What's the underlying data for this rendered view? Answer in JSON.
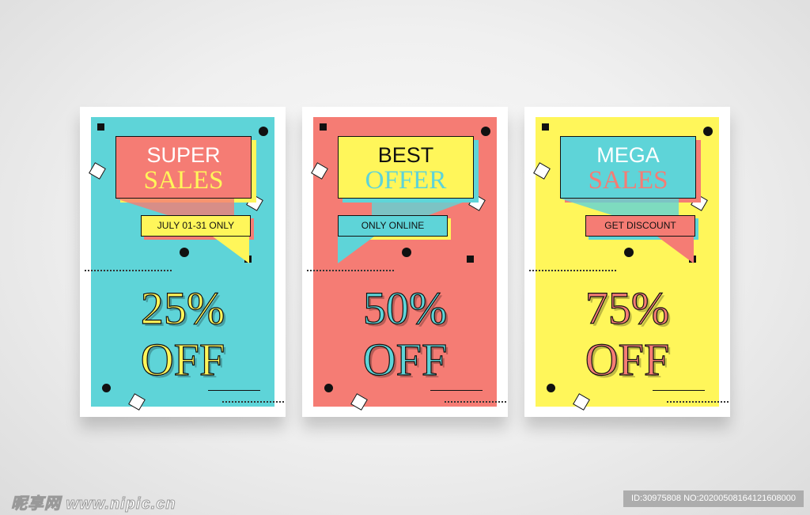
{
  "colors": {
    "teal": "#5ed4d8",
    "coral": "#f57c74",
    "yellow": "#fff65a"
  },
  "posters": [
    {
      "bg": "#5ed4d8",
      "banner_bg": "#f57c74",
      "title_line1": "SUPER",
      "title_line2": "SALES",
      "title1_color": "#ffffff",
      "title2_color": "#fff65a",
      "ribbon_bg": "#fff65a",
      "ribbon_text": "JULY 01-31 ONLY",
      "ribbon_side": "right",
      "percent": "25%",
      "off": "OFF",
      "percent_fill": "#fff65a",
      "percent_shadow": "#fff65a"
    },
    {
      "bg": "#f57c74",
      "banner_bg": "#fff65a",
      "title_line1": "BEST",
      "title_line2": "OFFER",
      "title1_color": "#111111",
      "title2_color": "#5ed4d8",
      "ribbon_bg": "#5ed4d8",
      "ribbon_text": "ONLY ONLINE",
      "ribbon_side": "left",
      "percent": "50%",
      "off": "OFF",
      "percent_fill": "#5ed4d8",
      "percent_shadow": "#5ed4d8"
    },
    {
      "bg": "#fff65a",
      "banner_bg": "#5ed4d8",
      "title_line1": "MEGA",
      "title_line2": "SALES",
      "title1_color": "#ffffff",
      "title2_color": "#f57c74",
      "ribbon_bg": "#f57c74",
      "ribbon_text": "GET DISCOUNT",
      "ribbon_side": "right",
      "percent": "75%",
      "off": "OFF",
      "percent_fill": "#f57c74",
      "percent_shadow": "#f57c74"
    }
  ],
  "watermark": {
    "logo": "昵享网 www.nipic.cn",
    "id_text": "ID:30975808 NO:20200508164121608000"
  }
}
